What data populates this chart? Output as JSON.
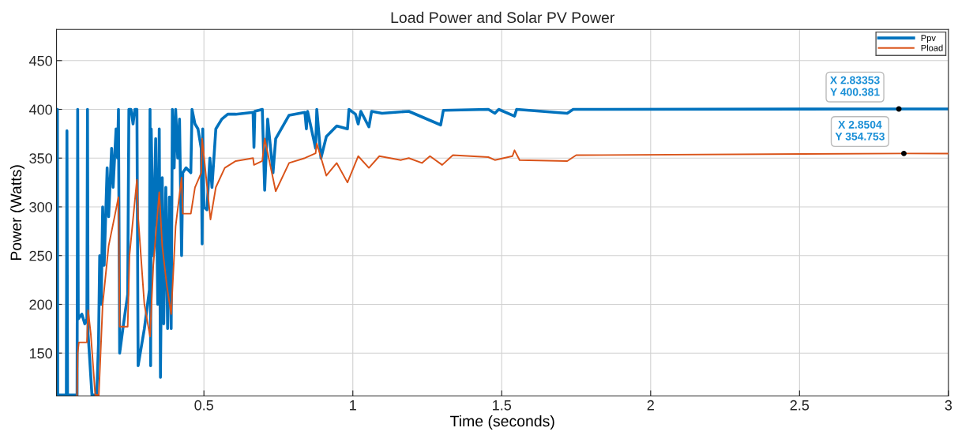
{
  "chart_data": {
    "type": "line",
    "title": "Load Power and Solar PV Power",
    "xlabel": "Time (seconds)",
    "ylabel": "Power (Watts)",
    "xlim": [
      0.005,
      3
    ],
    "ylim": [
      106,
      482
    ],
    "xticks": [
      0.5,
      1,
      1.5,
      2,
      2.5,
      3
    ],
    "yticks": [
      150,
      200,
      250,
      300,
      350,
      400,
      450
    ],
    "grid": true,
    "legend": "top right",
    "marker": "none",
    "line_style": "solid",
    "annotations": [
      {
        "text": "X 2.83353\nY 400.381",
        "x": 2.83353,
        "y": 400.381
      },
      {
        "text": "X 2.8504\nY 354.753",
        "x": 2.8504,
        "y": 354.753
      }
    ],
    "series": [
      {
        "name": "Ppv",
        "color": "#0072bd",
        "x": [
          0.005,
          0.008,
          0.009,
          0.038,
          0.04,
          0.042,
          0.074,
          0.076,
          0.078,
          0.09,
          0.1,
          0.107,
          0.109,
          0.111,
          0.124,
          0.14,
          0.146,
          0.15,
          0.155,
          0.16,
          0.165,
          0.175,
          0.18,
          0.19,
          0.195,
          0.205,
          0.21,
          0.213,
          0.217,
          0.23,
          0.244,
          0.248,
          0.255,
          0.262,
          0.268,
          0.275,
          0.279,
          0.3,
          0.317,
          0.319,
          0.321,
          0.323,
          0.33,
          0.338,
          0.345,
          0.35,
          0.354,
          0.36,
          0.365,
          0.372,
          0.378,
          0.384,
          0.39,
          0.394,
          0.4,
          0.405,
          0.412,
          0.418,
          0.425,
          0.429,
          0.44,
          0.456,
          0.46,
          0.47,
          0.48,
          0.491,
          0.494,
          0.496,
          0.5,
          0.51,
          0.52,
          0.527,
          0.54,
          0.56,
          0.58,
          0.607,
          0.665,
          0.668,
          0.671,
          0.696,
          0.704,
          0.714,
          0.732,
          0.741,
          0.786,
          0.839,
          0.844,
          0.848,
          0.875,
          0.879,
          0.893,
          0.911,
          0.946,
          0.982,
          0.987,
          1.009,
          1.018,
          1.027,
          1.054,
          1.063,
          1.098,
          1.188,
          1.295,
          1.304,
          1.455,
          1.477,
          1.49,
          1.543,
          1.55,
          1.72,
          1.74,
          2.83353,
          3.0
        ],
        "values": [
          400,
          400,
          107,
          107,
          378,
          107,
          107,
          400,
          185,
          190,
          180,
          185,
          400,
          170,
          107,
          107,
          160,
          250,
          200,
          300,
          240,
          340,
          290,
          360,
          320,
          380,
          350,
          400,
          150,
          180,
          210,
          400,
          400,
          385,
          400,
          400,
          137,
          175,
          215,
          400,
          137,
          380,
          250,
          370,
          200,
          380,
          125,
          330,
          180,
          320,
          175,
          310,
          175,
          400,
          340,
          400,
          350,
          390,
          250,
          335,
          340,
          335,
          400,
          385,
          380,
          360,
          262,
          380,
          300,
          297,
          350,
          320,
          380,
          390,
          395,
          395,
          397,
          361,
          398,
          400,
          317,
          390,
          335,
          370,
          394,
          397,
          380,
          398,
          360,
          400,
          350,
          372,
          383,
          380,
          400,
          395,
          385,
          398,
          382,
          398,
          396,
          398,
          384,
          399,
          400,
          396,
          400,
          393,
          400,
          396,
          400,
          400.381,
          400.4
        ]
      },
      {
        "name": "Pload",
        "color": "#d95319",
        "x": [
          0.074,
          0.076,
          0.08,
          0.107,
          0.111,
          0.12,
          0.135,
          0.147,
          0.16,
          0.18,
          0.2,
          0.213,
          0.217,
          0.244,
          0.25,
          0.275,
          0.279,
          0.3,
          0.319,
          0.33,
          0.35,
          0.36,
          0.375,
          0.39,
          0.405,
          0.425,
          0.429,
          0.456,
          0.47,
          0.491,
          0.494,
          0.522,
          0.54,
          0.57,
          0.607,
          0.665,
          0.668,
          0.696,
          0.704,
          0.741,
          0.786,
          0.839,
          0.875,
          0.879,
          0.911,
          0.946,
          0.982,
          1.018,
          1.054,
          1.089,
          1.161,
          1.188,
          1.232,
          1.259,
          1.3,
          1.336,
          1.455,
          1.477,
          1.536,
          1.543,
          1.56,
          1.72,
          1.75,
          2.8504,
          3.0
        ],
        "values": [
          107,
          150,
          161,
          161,
          194,
          170,
          107,
          107,
          200,
          260,
          290,
          310,
          177,
          177,
          250,
          328,
          290,
          200,
          167,
          240,
          315,
          260,
          220,
          190,
          280,
          330,
          293,
          293,
          320,
          335,
          370,
          287,
          320,
          340,
          347,
          350,
          343,
          347,
          370,
          316,
          345,
          350,
          355,
          365,
          332,
          345,
          325,
          352,
          340,
          352,
          348,
          350,
          345,
          352,
          343,
          353,
          351,
          348,
          352,
          358,
          348,
          347,
          353,
          354.753,
          354.7
        ]
      }
    ]
  }
}
